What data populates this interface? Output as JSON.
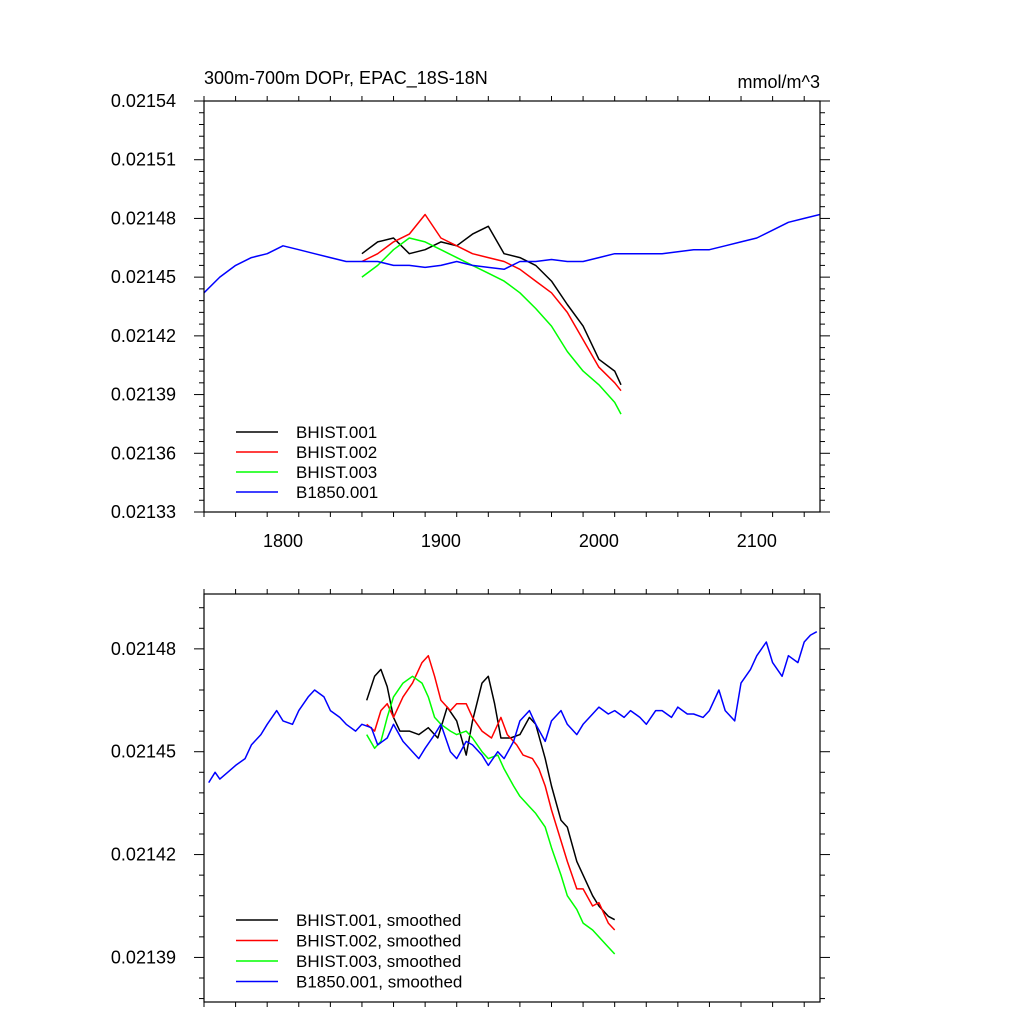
{
  "chart_data": [
    {
      "type": "line",
      "title": "300m-700m DOPr, EPAC_18S-18N",
      "units": "mmol/m^3",
      "xlim": [
        1750,
        2140
      ],
      "ylim": [
        0.02133,
        0.02154
      ],
      "x_ticks": [
        1800,
        1900,
        2000,
        2100
      ],
      "x_tick_labels": [
        "1800",
        "1900",
        "2000",
        "2100"
      ],
      "y_ticks": [
        0.02133,
        0.02136,
        0.02139,
        0.02142,
        0.02145,
        0.02148,
        0.02151,
        0.02154
      ],
      "y_tick_labels": [
        "0.02133",
        "0.02136",
        "0.02139",
        "0.02142",
        "0.02145",
        "0.02148",
        "0.02151",
        "0.02154"
      ],
      "legend_position": "bottom-left",
      "series": [
        {
          "name": "BHIST.001",
          "color": "#000000",
          "x": [
            1850,
            1860,
            1870,
            1880,
            1890,
            1900,
            1910,
            1920,
            1930,
            1940,
            1950,
            1960,
            1970,
            1980,
            1990,
            2000,
            2010,
            2014
          ],
          "y": [
            0.021462,
            0.021468,
            0.02147,
            0.021462,
            0.021464,
            0.021468,
            0.021466,
            0.021472,
            0.021476,
            0.021462,
            0.02146,
            0.021456,
            0.021448,
            0.021436,
            0.021425,
            0.021408,
            0.021402,
            0.021395
          ]
        },
        {
          "name": "BHIST.002",
          "color": "#ff0000",
          "x": [
            1850,
            1860,
            1870,
            1880,
            1890,
            1900,
            1910,
            1920,
            1930,
            1940,
            1950,
            1960,
            1970,
            1980,
            1990,
            2000,
            2010,
            2014
          ],
          "y": [
            0.021458,
            0.021462,
            0.021468,
            0.021472,
            0.021482,
            0.02147,
            0.021466,
            0.021462,
            0.02146,
            0.021458,
            0.021454,
            0.021448,
            0.021442,
            0.021432,
            0.021418,
            0.021404,
            0.021396,
            0.021392
          ]
        },
        {
          "name": "BHIST.003",
          "color": "#00ff00",
          "x": [
            1850,
            1860,
            1870,
            1880,
            1890,
            1900,
            1910,
            1920,
            1930,
            1940,
            1950,
            1960,
            1970,
            1980,
            1990,
            2000,
            2010,
            2014
          ],
          "y": [
            0.02145,
            0.021456,
            0.021464,
            0.02147,
            0.021468,
            0.021464,
            0.02146,
            0.021456,
            0.021452,
            0.021448,
            0.021442,
            0.021434,
            0.021425,
            0.021412,
            0.021402,
            0.021395,
            0.021386,
            0.02138
          ]
        },
        {
          "name": "B1850.001",
          "color": "#0000ff",
          "x": [
            1750,
            1760,
            1770,
            1780,
            1790,
            1800,
            1810,
            1820,
            1830,
            1840,
            1850,
            1860,
            1870,
            1880,
            1890,
            1900,
            1910,
            1920,
            1930,
            1940,
            1950,
            1960,
            1970,
            1980,
            1990,
            2000,
            2010,
            2020,
            2030,
            2040,
            2050,
            2060,
            2070,
            2080,
            2090,
            2100,
            2110,
            2120,
            2130,
            2140
          ],
          "y": [
            0.021442,
            0.02145,
            0.021456,
            0.02146,
            0.021462,
            0.021466,
            0.021464,
            0.021462,
            0.02146,
            0.021458,
            0.021458,
            0.021458,
            0.021456,
            0.021456,
            0.021455,
            0.021456,
            0.021458,
            0.021456,
            0.021455,
            0.021454,
            0.021458,
            0.021458,
            0.021459,
            0.021458,
            0.021458,
            0.02146,
            0.021462,
            0.021462,
            0.021462,
            0.021462,
            0.021463,
            0.021464,
            0.021464,
            0.021466,
            0.021468,
            0.02147,
            0.021474,
            0.021478,
            0.02148,
            0.021482
          ]
        }
      ]
    },
    {
      "type": "line",
      "xlim": [
        1750,
        2140
      ],
      "ylim": [
        0.021377,
        0.021496
      ],
      "x_ticks": [
        1800,
        1900,
        2000,
        2100
      ],
      "y_ticks": [
        0.02139,
        0.02142,
        0.02145,
        0.02148
      ],
      "y_tick_labels": [
        "0.02139",
        "0.02142",
        "0.02145",
        "0.02148"
      ],
      "legend_position": "bottom-left",
      "series": [
        {
          "name": "BHIST.001, smoothed",
          "color": "#000000",
          "x": [
            1853,
            1858,
            1862,
            1866,
            1870,
            1874,
            1880,
            1886,
            1892,
            1898,
            1904,
            1910,
            1916,
            1920,
            1926,
            1930,
            1934,
            1938,
            1944,
            1950,
            1956,
            1960,
            1966,
            1970,
            1976,
            1980,
            1986,
            1990,
            1996,
            2000,
            2006,
            2010
          ],
          "y": [
            0.021465,
            0.021472,
            0.021474,
            0.021469,
            0.02146,
            0.021456,
            0.021456,
            0.021455,
            0.021457,
            0.021454,
            0.021463,
            0.021459,
            0.021449,
            0.021459,
            0.02147,
            0.021472,
            0.021464,
            0.021454,
            0.021454,
            0.021455,
            0.02146,
            0.021458,
            0.021448,
            0.02144,
            0.02143,
            0.021428,
            0.021418,
            0.021414,
            0.021408,
            0.021405,
            0.021402,
            0.021401
          ]
        },
        {
          "name": "BHIST.002, smoothed",
          "color": "#ff0000",
          "x": [
            1853,
            1858,
            1862,
            1866,
            1870,
            1876,
            1882,
            1888,
            1892,
            1896,
            1900,
            1906,
            1910,
            1916,
            1920,
            1926,
            1932,
            1938,
            1942,
            1948,
            1952,
            1958,
            1962,
            1966,
            1970,
            1976,
            1980,
            1986,
            1990,
            1996,
            2000,
            2006,
            2010
          ],
          "y": [
            0.021458,
            0.021456,
            0.021462,
            0.021464,
            0.02146,
            0.021466,
            0.02147,
            0.021476,
            0.021478,
            0.021472,
            0.021465,
            0.021462,
            0.021464,
            0.021464,
            0.02146,
            0.021456,
            0.021454,
            0.02146,
            0.021455,
            0.021452,
            0.021449,
            0.021448,
            0.021445,
            0.02144,
            0.021433,
            0.021424,
            0.021418,
            0.02141,
            0.02141,
            0.021405,
            0.021406,
            0.0214,
            0.021398
          ]
        },
        {
          "name": "BHIST.003, smoothed",
          "color": "#00ff00",
          "x": [
            1853,
            1858,
            1862,
            1866,
            1870,
            1876,
            1882,
            1888,
            1892,
            1896,
            1900,
            1906,
            1910,
            1916,
            1920,
            1926,
            1930,
            1936,
            1940,
            1946,
            1950,
            1956,
            1960,
            1966,
            1970,
            1976,
            1980,
            1986,
            1990,
            1996,
            2000,
            2006,
            2010
          ],
          "y": [
            0.021455,
            0.021451,
            0.021453,
            0.02146,
            0.021466,
            0.02147,
            0.021472,
            0.02147,
            0.021466,
            0.02146,
            0.021458,
            0.021456,
            0.021455,
            0.021456,
            0.021454,
            0.02145,
            0.021448,
            0.021449,
            0.021445,
            0.02144,
            0.021437,
            0.021434,
            0.021432,
            0.021428,
            0.021422,
            0.021414,
            0.021408,
            0.021404,
            0.0214,
            0.021398,
            0.021396,
            0.021393,
            0.021391
          ]
        },
        {
          "name": "B1850.001, smoothed",
          "color": "#0000ff",
          "x": [
            1753,
            1757,
            1760,
            1765,
            1770,
            1776,
            1780,
            1786,
            1790,
            1796,
            1800,
            1806,
            1810,
            1816,
            1820,
            1826,
            1830,
            1836,
            1840,
            1846,
            1850,
            1856,
            1860,
            1866,
            1870,
            1876,
            1880,
            1886,
            1890,
            1896,
            1900,
            1906,
            1910,
            1916,
            1920,
            1926,
            1930,
            1936,
            1940,
            1946,
            1950,
            1956,
            1960,
            1966,
            1970,
            1976,
            1980,
            1986,
            1990,
            1996,
            2000,
            2006,
            2010,
            2016,
            2020,
            2026,
            2030,
            2036,
            2040,
            2046,
            2050,
            2056,
            2060,
            2066,
            2070,
            2076,
            2080,
            2086,
            2090,
            2096,
            2100,
            2106,
            2110,
            2116,
            2120,
            2126,
            2130,
            2134,
            2138
          ],
          "y": [
            0.021441,
            0.021444,
            0.021442,
            0.021444,
            0.021446,
            0.021448,
            0.021452,
            0.021455,
            0.021458,
            0.021462,
            0.021459,
            0.021458,
            0.021462,
            0.021466,
            0.021468,
            0.021466,
            0.021462,
            0.02146,
            0.021458,
            0.021456,
            0.021458,
            0.021457,
            0.021452,
            0.021454,
            0.021458,
            0.021453,
            0.021451,
            0.021448,
            0.021451,
            0.021455,
            0.021458,
            0.02145,
            0.021448,
            0.021453,
            0.021452,
            0.021449,
            0.021446,
            0.02145,
            0.021448,
            0.021453,
            0.021459,
            0.021462,
            0.021458,
            0.021453,
            0.021459,
            0.021462,
            0.021458,
            0.021455,
            0.021458,
            0.021461,
            0.021463,
            0.021461,
            0.021462,
            0.02146,
            0.021462,
            0.02146,
            0.021458,
            0.021462,
            0.021462,
            0.02146,
            0.021463,
            0.021461,
            0.021461,
            0.02146,
            0.021462,
            0.021468,
            0.021462,
            0.021459,
            0.02147,
            0.021474,
            0.021478,
            0.021482,
            0.021476,
            0.021472,
            0.021478,
            0.021476,
            0.021482,
            0.021484,
            0.021485
          ]
        }
      ]
    }
  ]
}
